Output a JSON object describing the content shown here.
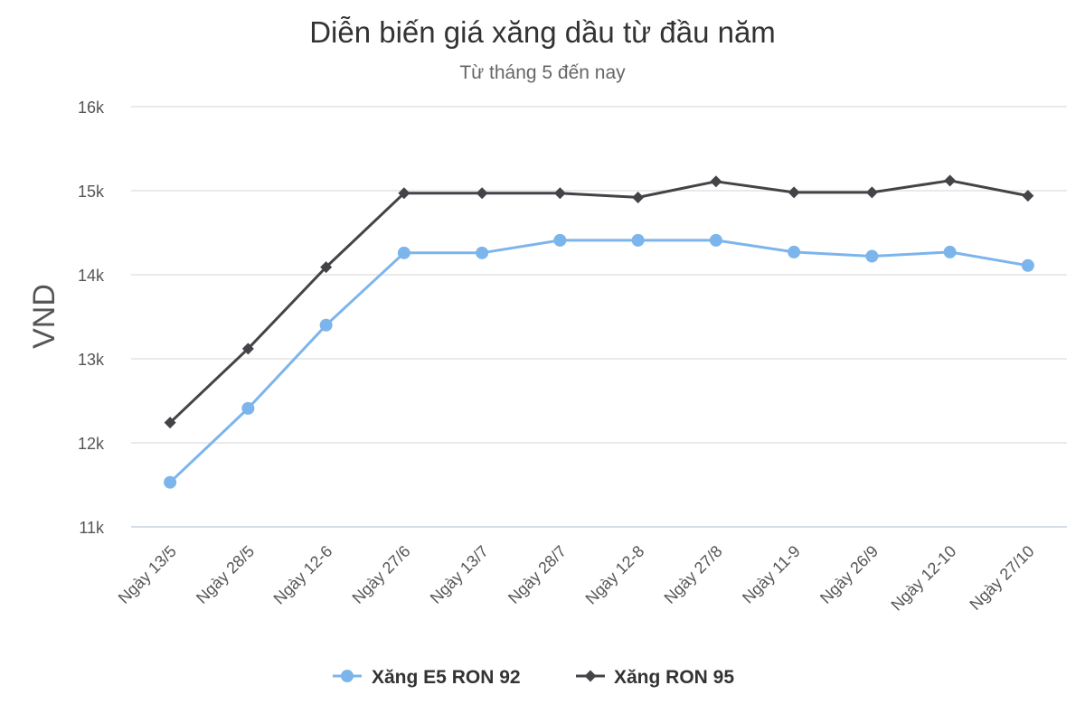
{
  "chart_data": {
    "type": "line",
    "title": "Diễn biến giá xăng dầu từ đầu năm",
    "subtitle": "Từ tháng 5 đến nay",
    "ylabel": "VND",
    "xlabel": "",
    "ylim": [
      11000,
      16000
    ],
    "yticks": [
      {
        "value": 11000,
        "label": "11k"
      },
      {
        "value": 12000,
        "label": "12k"
      },
      {
        "value": 13000,
        "label": "13k"
      },
      {
        "value": 14000,
        "label": "14k"
      },
      {
        "value": 15000,
        "label": "15k"
      },
      {
        "value": 16000,
        "label": "16k"
      }
    ],
    "grid": true,
    "legend_position": "bottom-center",
    "categories": [
      "Ngày 13/5",
      "Ngày 28/5",
      "Ngày 12-6",
      "Ngày 27/6",
      "Ngày 13/7",
      "Ngày 28/7",
      "Ngày 12-8",
      "Ngày 27/8",
      "Ngày 11-9",
      "Ngày 26/9",
      "Ngày 12-10",
      "Ngày 27/10"
    ],
    "series": [
      {
        "name": "Xăng E5 RON 92",
        "color": "#7cb5ec",
        "marker": "circle",
        "values": [
          11530,
          12410,
          13400,
          14260,
          14260,
          14410,
          14410,
          14410,
          14270,
          14220,
          14270,
          14110
        ]
      },
      {
        "name": "Xăng RON 95",
        "color": "#434348",
        "marker": "diamond",
        "values": [
          12240,
          13120,
          14090,
          14970,
          14970,
          14970,
          14920,
          15110,
          14980,
          14980,
          15120,
          14940
        ]
      }
    ]
  }
}
